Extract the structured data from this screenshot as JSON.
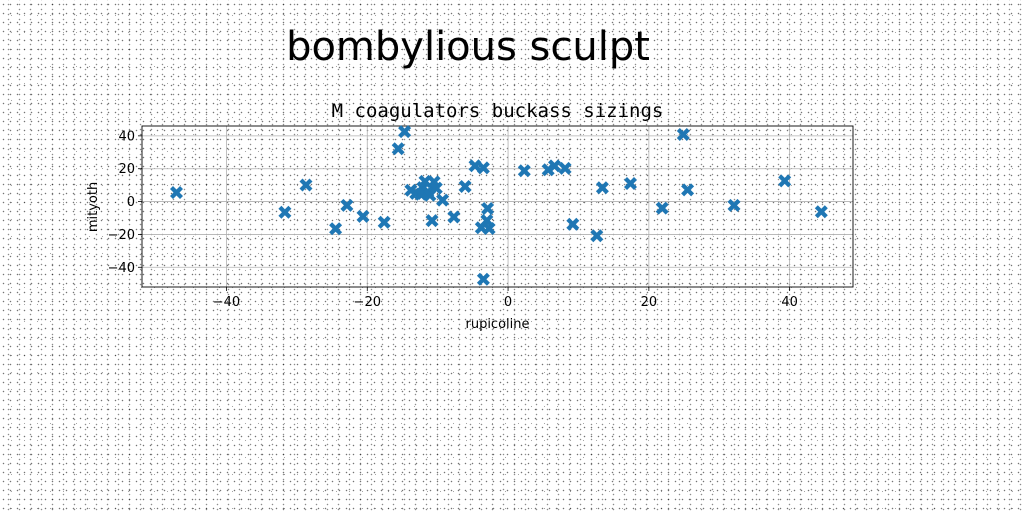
{
  "figure": {
    "suptitle": "bombylious sculpt"
  },
  "chart_data": {
    "type": "scatter",
    "title": "M coagulators buckass sizings",
    "xlabel": "rupicoline",
    "ylabel": "mityoth",
    "xlim": [
      -52,
      49
    ],
    "ylim": [
      -52,
      46
    ],
    "xticks": [
      -40,
      -20,
      0,
      20,
      40
    ],
    "yticks": [
      -40,
      -20,
      0,
      20,
      40
    ],
    "xtick_labels": [
      "−40",
      "−20",
      "0",
      "20",
      "40"
    ],
    "ytick_labels": [
      "−40",
      "−20",
      "0",
      "20",
      "40"
    ],
    "grid": true,
    "marker": "X",
    "color": "#1f77b4",
    "points": [
      {
        "x": -47.1,
        "y": 5.5
      },
      {
        "x": -31.7,
        "y": -6.5
      },
      {
        "x": -28.7,
        "y": 10.1
      },
      {
        "x": -24.5,
        "y": -16.6
      },
      {
        "x": -22.9,
        "y": -2.3
      },
      {
        "x": -20.6,
        "y": -9.0
      },
      {
        "x": -17.6,
        "y": -12.6
      },
      {
        "x": -15.6,
        "y": 32.2
      },
      {
        "x": -14.7,
        "y": 42.6
      },
      {
        "x": -13.8,
        "y": 6.9
      },
      {
        "x": -13.1,
        "y": 5.0
      },
      {
        "x": -12.4,
        "y": 4.4
      },
      {
        "x": -12.1,
        "y": 8.5
      },
      {
        "x": -11.8,
        "y": 12.3
      },
      {
        "x": -11.4,
        "y": 6.0
      },
      {
        "x": -11.1,
        "y": 3.8
      },
      {
        "x": -10.8,
        "y": -11.6
      },
      {
        "x": -10.5,
        "y": 12.0
      },
      {
        "x": -10.2,
        "y": 8.2
      },
      {
        "x": -9.3,
        "y": 0.9
      },
      {
        "x": -7.7,
        "y": -9.4
      },
      {
        "x": -6.1,
        "y": 9.2
      },
      {
        "x": -4.7,
        "y": 21.8
      },
      {
        "x": -3.8,
        "y": -15.9
      },
      {
        "x": -3.5,
        "y": 20.5
      },
      {
        "x": -3.5,
        "y": -47.3
      },
      {
        "x": -3.0,
        "y": -11.5
      },
      {
        "x": -2.9,
        "y": -4.2
      },
      {
        "x": -2.7,
        "y": -16.4
      },
      {
        "x": 2.3,
        "y": 18.8
      },
      {
        "x": 5.7,
        "y": 19.4
      },
      {
        "x": 6.6,
        "y": 21.7
      },
      {
        "x": 8.1,
        "y": 20.2
      },
      {
        "x": 9.2,
        "y": -13.8
      },
      {
        "x": 12.6,
        "y": -20.8
      },
      {
        "x": 13.4,
        "y": 8.4
      },
      {
        "x": 17.4,
        "y": 11.0
      },
      {
        "x": 21.9,
        "y": -4.0
      },
      {
        "x": 24.9,
        "y": 40.8
      },
      {
        "x": 25.5,
        "y": 7.1
      },
      {
        "x": 32.1,
        "y": -2.3
      },
      {
        "x": 39.3,
        "y": 12.6
      },
      {
        "x": 44.5,
        "y": -6.2
      }
    ]
  }
}
